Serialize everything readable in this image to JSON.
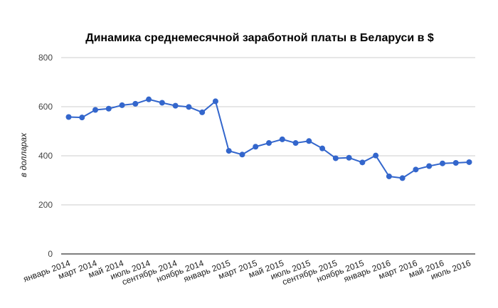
{
  "chart_data": {
    "type": "line",
    "title": "Динамика среднемесячной заработной платы в Беларуси в $",
    "xlabel": "",
    "ylabel": "в долларах",
    "ylim": [
      0,
      800
    ],
    "yticks": [
      0,
      200,
      400,
      600,
      800
    ],
    "grid": true,
    "legend": "none",
    "colors": {
      "line": "#3366cc",
      "grid": "#cccccc",
      "axis": "#333333"
    },
    "x_tick_labels": [
      "январь 2014",
      "март 2014",
      "май 2014",
      "июль 2014",
      "сентябрь 2014",
      "ноябрь 2014",
      "январь 2015",
      "март 2015",
      "май 2015",
      "июль 2015",
      "сентябрь 2015",
      "ноябрь 2015",
      "январь 2016",
      "март 2016",
      "май 2016",
      "июль 2016"
    ],
    "series": [
      {
        "values": [
          558,
          556,
          587,
          592,
          606,
          612,
          630,
          616,
          604,
          599,
          577,
          622,
          420,
          405,
          437,
          452,
          467,
          452,
          460,
          430,
          390,
          392,
          373,
          401,
          316,
          309,
          344,
          358,
          369,
          371,
          374
        ]
      }
    ]
  }
}
